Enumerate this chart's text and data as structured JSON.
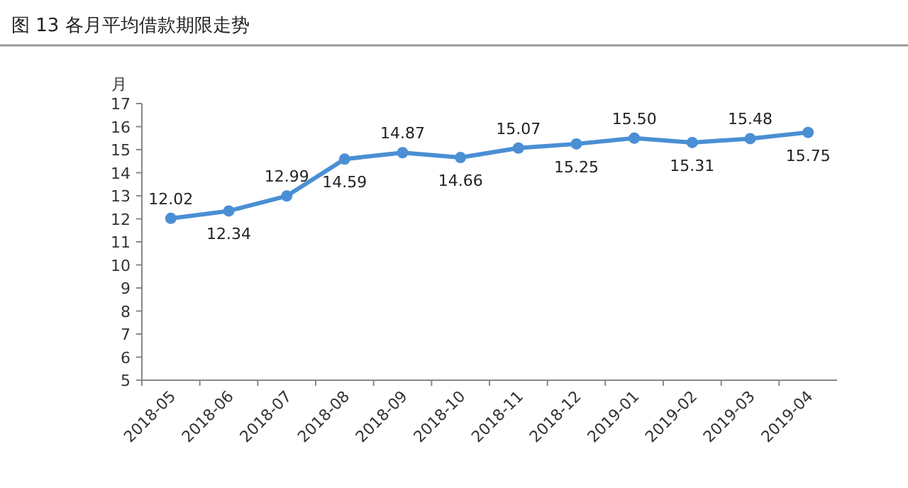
{
  "chart_data": {
    "type": "line",
    "title": "图 13  各月平均借款期限走势",
    "ylabel": "月",
    "categories": [
      "2018-05",
      "2018-06",
      "2018-07",
      "2018-08",
      "2018-09",
      "2018-10",
      "2018-11",
      "2018-12",
      "2019-01",
      "2019-02",
      "2019-03",
      "2019-04"
    ],
    "values": [
      12.02,
      12.34,
      12.99,
      14.59,
      14.87,
      14.66,
      15.07,
      15.25,
      15.5,
      15.31,
      15.48,
      15.75
    ],
    "value_labels": [
      "12.02",
      "12.34",
      "12.99",
      "14.59",
      "14.87",
      "14.66",
      "15.07",
      "15.25",
      "15.50",
      "15.31",
      "15.48",
      "15.75"
    ],
    "color": "#4a8fd4",
    "ylim": [
      5,
      17
    ],
    "yticks": [
      5,
      6,
      7,
      8,
      9,
      10,
      11,
      12,
      13,
      14,
      15,
      16,
      17
    ],
    "marker": "circle",
    "line_style": "solid"
  }
}
